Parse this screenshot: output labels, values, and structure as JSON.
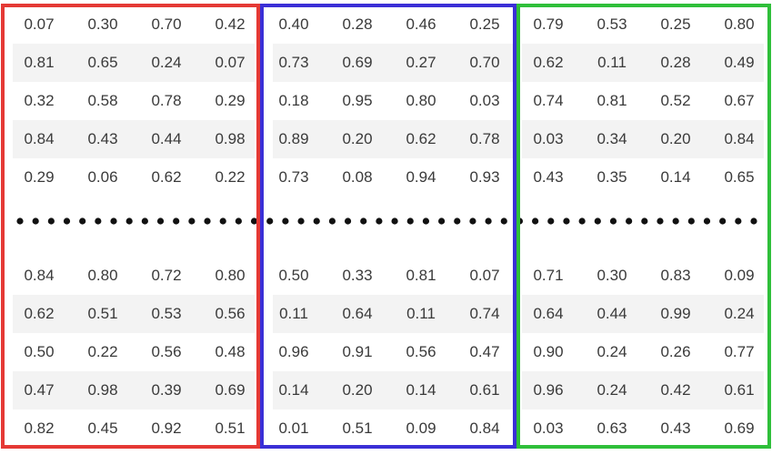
{
  "colors": {
    "red_box": "#e53935",
    "blue_box": "#3b2fd6",
    "green_box": "#2fbf3a",
    "dot": "#111111",
    "stripe": "#f3f3f3"
  },
  "groups": [
    {
      "name": "red",
      "top_rows": [
        [
          "0.07",
          "0.30",
          "0.70",
          "0.42"
        ],
        [
          "0.81",
          "0.65",
          "0.24",
          "0.07"
        ],
        [
          "0.32",
          "0.58",
          "0.78",
          "0.29"
        ],
        [
          "0.84",
          "0.43",
          "0.44",
          "0.98"
        ],
        [
          "0.29",
          "0.06",
          "0.62",
          "0.22"
        ]
      ],
      "bottom_rows": [
        [
          "0.84",
          "0.80",
          "0.72",
          "0.80"
        ],
        [
          "0.62",
          "0.51",
          "0.53",
          "0.56"
        ],
        [
          "0.50",
          "0.22",
          "0.56",
          "0.48"
        ],
        [
          "0.47",
          "0.98",
          "0.39",
          "0.69"
        ],
        [
          "0.82",
          "0.45",
          "0.92",
          "0.51"
        ]
      ]
    },
    {
      "name": "blue",
      "top_rows": [
        [
          "0.40",
          "0.28",
          "0.46",
          "0.25"
        ],
        [
          "0.73",
          "0.69",
          "0.27",
          "0.70"
        ],
        [
          "0.18",
          "0.95",
          "0.80",
          "0.03"
        ],
        [
          "0.89",
          "0.20",
          "0.62",
          "0.78"
        ],
        [
          "0.73",
          "0.08",
          "0.94",
          "0.93"
        ]
      ],
      "bottom_rows": [
        [
          "0.50",
          "0.33",
          "0.81",
          "0.07"
        ],
        [
          "0.11",
          "0.64",
          "0.11",
          "0.74"
        ],
        [
          "0.96",
          "0.91",
          "0.56",
          "0.47"
        ],
        [
          "0.14",
          "0.20",
          "0.14",
          "0.61"
        ],
        [
          "0.01",
          "0.51",
          "0.09",
          "0.84"
        ]
      ]
    },
    {
      "name": "green",
      "top_rows": [
        [
          "0.79",
          "0.53",
          "0.25",
          "0.80"
        ],
        [
          "0.62",
          "0.11",
          "0.28",
          "0.49"
        ],
        [
          "0.74",
          "0.81",
          "0.52",
          "0.67"
        ],
        [
          "0.03",
          "0.34",
          "0.20",
          "0.84"
        ],
        [
          "0.43",
          "0.35",
          "0.14",
          "0.65"
        ]
      ],
      "bottom_rows": [
        [
          "0.71",
          "0.30",
          "0.83",
          "0.09"
        ],
        [
          "0.64",
          "0.44",
          "0.99",
          "0.24"
        ],
        [
          "0.90",
          "0.24",
          "0.26",
          "0.77"
        ],
        [
          "0.96",
          "0.24",
          "0.42",
          "0.61"
        ],
        [
          "0.03",
          "0.63",
          "0.43",
          "0.69"
        ]
      ]
    }
  ]
}
